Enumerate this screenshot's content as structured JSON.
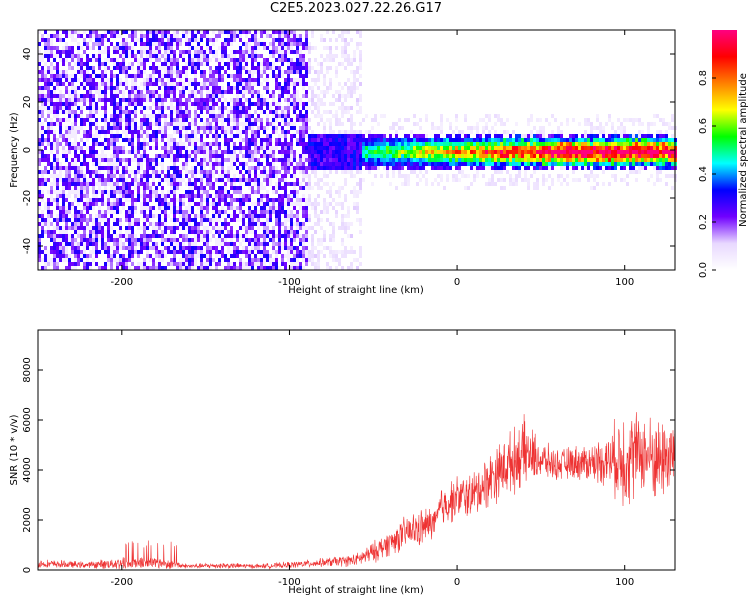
{
  "title": "C2E5.2023.027.22.26.G17",
  "chart_data": [
    {
      "type": "heatmap",
      "name": "spectrogram",
      "xlabel": "Height of straight line (km)",
      "ylabel": "Frequency (Hz)",
      "xlim": [
        -250,
        130
      ],
      "ylim": [
        -50,
        50
      ],
      "x_ticks": [
        -200,
        -100,
        0,
        100
      ],
      "x_tick_labels": [
        "-200",
        "-100",
        "0",
        "100"
      ],
      "y_ticks": [
        -40,
        -20,
        0,
        20,
        40
      ],
      "y_tick_labels": [
        "-40",
        "-20",
        "0",
        "20",
        "40"
      ],
      "colorbar": {
        "label": "Normalized spectral amplitude",
        "range": [
          0,
          1
        ],
        "ticks": [
          0.0,
          0.2,
          0.4,
          0.6,
          0.8
        ],
        "tick_labels": [
          "0.0",
          "0.2",
          "0.4",
          "0.6",
          "0.8"
        ],
        "colormap": [
          "#ffffff",
          "#e8d8ff",
          "#7000ff",
          "#0000ff",
          "#00ffff",
          "#00ff00",
          "#ffff00",
          "#ff8000",
          "#ff0000",
          "#ff0080"
        ]
      },
      "regions": [
        {
          "x_range": [
            -250,
            -90
          ],
          "description": "broadband noise",
          "amplitude": 0.25
        },
        {
          "x_range": [
            -90,
            -57
          ],
          "description": "faint noise",
          "amplitude": 0.1
        },
        {
          "x_range": [
            -57,
            130
          ],
          "description": "narrow band near 0 Hz",
          "center_hz": 0,
          "half_width_hz": 7,
          "peak_amplitude": 1.0
        }
      ]
    },
    {
      "type": "line",
      "name": "snr",
      "xlabel": "Height of straight line (km)",
      "ylabel": "SNR (10 * v/v)",
      "xlim": [
        -250,
        130
      ],
      "ylim": [
        0,
        9600
      ],
      "x_ticks": [
        -200,
        -100,
        0,
        100
      ],
      "x_tick_labels": [
        "-200",
        "-100",
        "0",
        "100"
      ],
      "y_ticks": [
        0,
        2000,
        4000,
        6000,
        8000
      ],
      "y_tick_labels": [
        "0",
        "2000",
        "4000",
        "6000",
        "8000"
      ],
      "color": "#ee3333",
      "x": [
        -250,
        -220,
        -200,
        -180,
        -160,
        -140,
        -120,
        -100,
        -80,
        -60,
        -50,
        -40,
        -30,
        -20,
        -12,
        -10,
        0,
        10,
        20,
        30,
        40,
        50,
        60,
        70,
        80,
        90,
        100,
        110,
        120,
        130
      ],
      "y": [
        250,
        200,
        280,
        300,
        150,
        180,
        150,
        200,
        300,
        400,
        700,
        1100,
        1500,
        1700,
        2000,
        2500,
        2900,
        3000,
        3700,
        4200,
        4700,
        4400,
        4200,
        4300,
        4300,
        4400,
        4500,
        4700,
        4400,
        4700
      ],
      "spread": [
        200,
        150,
        300,
        300,
        100,
        150,
        100,
        150,
        200,
        300,
        500,
        600,
        800,
        900,
        700,
        1000,
        1000,
        1100,
        1300,
        1400,
        1600,
        900,
        700,
        800,
        900,
        1200,
        2500,
        1800,
        2000,
        1900
      ]
    }
  ]
}
